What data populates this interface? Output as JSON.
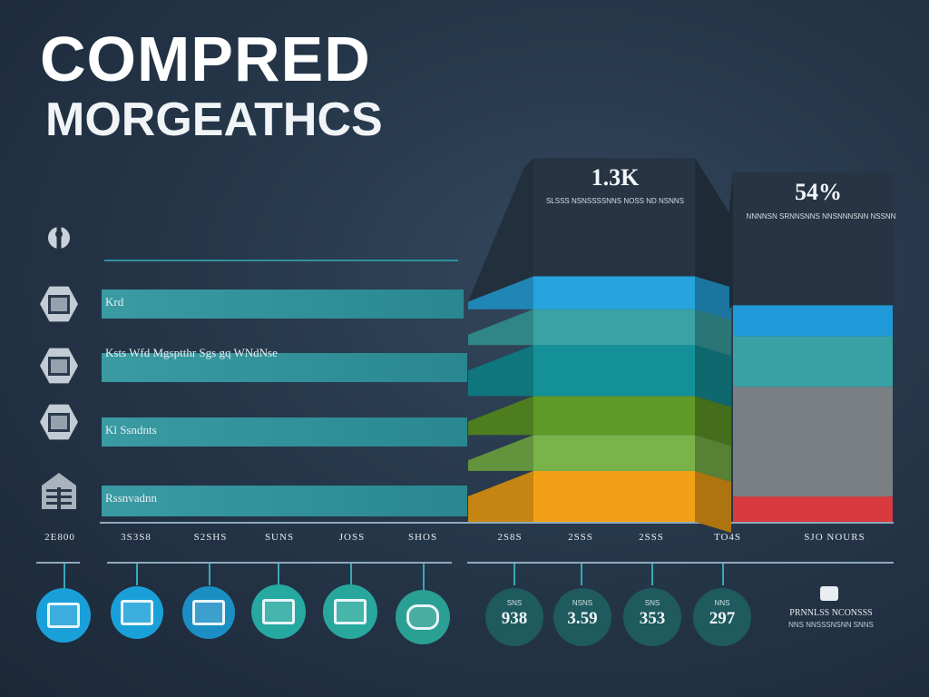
{
  "header": {
    "title_line1": "COMPRED",
    "title_line2": "MORGEATHCS"
  },
  "chart_data": {
    "type": "bar",
    "title": "COMPRED MORGEATHCS",
    "horizontal_bars": [
      {
        "label": "Krd",
        "value": 0.95
      },
      {
        "label": "Ksts Wfd Mgsptthr Sgs gq WNdNse",
        "value": 0.96
      },
      {
        "label": "Kl Ssndnts",
        "value": 0.96
      },
      {
        "label": "Rssnvadnn",
        "value": 0.96
      }
    ],
    "x_tick_labels": [
      "2E800",
      "3S3S8",
      "S2SHS",
      "SUNS",
      "JOSS",
      "SHOS",
      "2S8S",
      "2SSS",
      "2SSS",
      "TO4S",
      "SJO NOURS"
    ],
    "stacked_columns": [
      {
        "label": "1.3K",
        "caption": "SLSSS NSNSSSSNNS NOSS ND NSNNS",
        "segments": [
          {
            "color": "#f2a116",
            "value": 0.17
          },
          {
            "color": "#79b34a",
            "value": 0.12
          },
          {
            "color": "#5f9927",
            "value": 0.13
          },
          {
            "color": "#139098",
            "value": 0.17
          },
          {
            "color": "#3aa2a4",
            "value": 0.12
          },
          {
            "color": "#27a3dd",
            "value": 0.11
          }
        ]
      },
      {
        "label": "54%",
        "caption": "NNNNSN SRNNSNNS NNSNNNSNN NSSNN",
        "segments": [
          {
            "color": "#d83a3e",
            "value": 0.09
          },
          {
            "color": "#7a7f84",
            "value": 0.39
          },
          {
            "color": "#38a1a3",
            "value": 0.18
          },
          {
            "color": "#2099d9",
            "value": 0.11
          }
        ]
      }
    ],
    "bubbles": [
      {
        "icon": "document-icon",
        "color": "#1aa0d8"
      },
      {
        "icon": "screen-icon",
        "color": "#1aa0d8"
      },
      {
        "icon": "card-icon",
        "color": "#1b8fc4"
      },
      {
        "icon": "monitor-icon",
        "color": "#26a9a0"
      },
      {
        "icon": "chart-icon",
        "color": "#28a89c"
      },
      {
        "icon": "cloud-icon",
        "color": "#2a9f93"
      }
    ],
    "stats": [
      {
        "small": "SNS",
        "big": "938"
      },
      {
        "small": "NSNS",
        "big": "3.59"
      },
      {
        "small": "SNS",
        "big": "353"
      },
      {
        "small": "NNS",
        "big": "297"
      }
    ],
    "footer_note": {
      "line1": "PRNNLSS NCONSSS",
      "line2": "NNS NNSSSNSNN SNNS"
    }
  },
  "colors": {
    "background": "#26374a",
    "hbar": "#3a9ba3",
    "accent_line": "#2e8fa0"
  }
}
